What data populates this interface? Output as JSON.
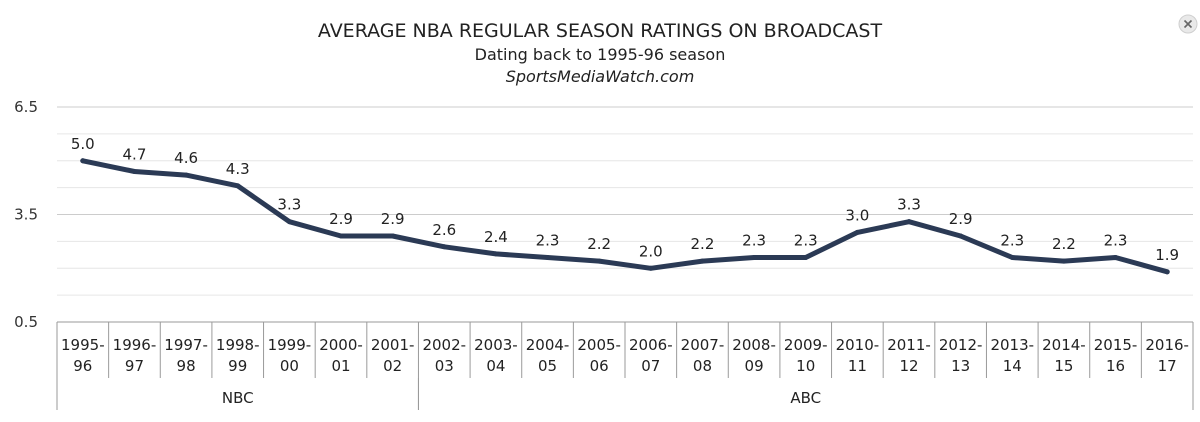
{
  "chart_data": {
    "type": "line",
    "title": "AVERAGE NBA REGULAR SEASON RATINGS ON BROADCAST",
    "subtitle": "Dating back to 1995-96 season",
    "source": "SportsMediaWatch.com",
    "categories": [
      [
        "1995-",
        "96"
      ],
      [
        "1996-",
        "97"
      ],
      [
        "1997-",
        "98"
      ],
      [
        "1998-",
        "99"
      ],
      [
        "1999-",
        "00"
      ],
      [
        "2000-",
        "01"
      ],
      [
        "2001-",
        "02"
      ],
      [
        "2002-",
        "03"
      ],
      [
        "2003-",
        "04"
      ],
      [
        "2004-",
        "05"
      ],
      [
        "2005-",
        "06"
      ],
      [
        "2006-",
        "07"
      ],
      [
        "2007-",
        "08"
      ],
      [
        "2008-",
        "09"
      ],
      [
        "2009-",
        "10"
      ],
      [
        "2010-",
        "11"
      ],
      [
        "2011-",
        "12"
      ],
      [
        "2012-",
        "13"
      ],
      [
        "2013-",
        "14"
      ],
      [
        "2014-",
        "15"
      ],
      [
        "2015-",
        "16"
      ],
      [
        "2016-",
        "17"
      ]
    ],
    "series": [
      {
        "values": [
          5.0,
          4.7,
          4.6,
          4.3,
          3.3,
          2.9,
          2.9,
          2.6,
          2.4,
          2.3,
          2.2,
          2.0,
          2.2,
          2.3,
          2.3,
          3.0,
          3.3,
          2.9,
          2.3,
          2.2,
          2.3,
          1.9
        ],
        "labels": [
          "5.0",
          "4.7",
          "4.6",
          "4.3",
          "3.3",
          "2.9",
          "2.9",
          "2.6",
          "2.4",
          "2.3",
          "2.2",
          "2.0",
          "2.2",
          "2.3",
          "2.3",
          "3.0",
          "3.3",
          "2.9",
          "2.3",
          "2.2",
          "2.3",
          "1.9"
        ],
        "color": "#2b3a55"
      }
    ],
    "groups": [
      {
        "label": "NBC",
        "start": 0,
        "end": 6
      },
      {
        "label": "ABC",
        "start": 7,
        "end": 21
      }
    ],
    "ylim": [
      0.5,
      6.5
    ],
    "yticks": [
      "0.5",
      "3.5",
      "6.5"
    ],
    "ytick_values": [
      0.5,
      3.5,
      6.5
    ],
    "ygrid_minor_step": 0.75,
    "grid": true,
    "legend": "none"
  },
  "icons": {
    "close": "close-icon"
  }
}
